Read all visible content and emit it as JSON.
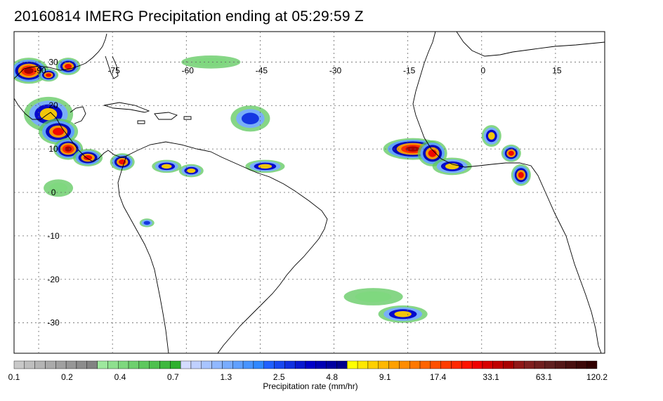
{
  "title": "20160814 IMERG Precipitation ending at 05:29:59 Z",
  "map": {
    "lon_labels": [
      "-90",
      "-75",
      "-60",
      "-45",
      "-30",
      "-15",
      "0",
      "15"
    ],
    "lat_labels": [
      "30",
      "20",
      "10",
      "0",
      "-10",
      "-20",
      "-30"
    ],
    "lon_range": [
      -95,
      25
    ],
    "lat_range": [
      -37,
      37
    ],
    "gridlines": true,
    "coastline_color": "#000000",
    "grid_color": "#555555"
  },
  "colorbar": {
    "label": "Precipitation rate (mm/hr)",
    "tick_labels": [
      "0.1",
      "0.2",
      "0.4",
      "0.7",
      "1.3",
      "2.5",
      "4.8",
      "9.1",
      "17.4",
      "33.1",
      "63.1",
      "120.2"
    ],
    "colors": [
      "#c8c8c8",
      "#bebebe",
      "#b4b4b4",
      "#aaaaaa",
      "#a0a0a0",
      "#969696",
      "#8c8c8c",
      "#828282",
      "#9ee89e",
      "#8ee08e",
      "#7ed87e",
      "#6ed06e",
      "#5ec85e",
      "#4ec04e",
      "#3eb83e",
      "#2eb02e",
      "#d4dcff",
      "#c0d0ff",
      "#a8c4ff",
      "#90b8ff",
      "#78acff",
      "#60a0ff",
      "#4894ff",
      "#3088ff",
      "#2060ff",
      "#1848f0",
      "#1030e0",
      "#0818d0",
      "#0000c8",
      "#0000b4",
      "#0000a0",
      "#00008c",
      "#ffff00",
      "#ffe800",
      "#ffd000",
      "#ffb800",
      "#ffa000",
      "#ff8c00",
      "#ff7800",
      "#ff6400",
      "#ff5000",
      "#ff3c00",
      "#ff2800",
      "#ff1400",
      "#f00000",
      "#d80000",
      "#c00000",
      "#a80000",
      "#901818",
      "#802020",
      "#702020",
      "#602020",
      "#541818",
      "#481010",
      "#3c0808",
      "#300000"
    ]
  },
  "precip_clusters": [
    {
      "lon": -92,
      "lat": 28,
      "rx": 4,
      "ry": 3,
      "level": 5
    },
    {
      "lon": -88,
      "lat": 27,
      "rx": 2,
      "ry": 1.5,
      "level": 4
    },
    {
      "lon": -84,
      "lat": 29,
      "rx": 2.5,
      "ry": 2,
      "level": 4
    },
    {
      "lon": -88,
      "lat": 18,
      "rx": 5,
      "ry": 4,
      "level": 3
    },
    {
      "lon": -86,
      "lat": 14,
      "rx": 4,
      "ry": 3,
      "level": 4
    },
    {
      "lon": -84,
      "lat": 10,
      "rx": 3,
      "ry": 2.5,
      "level": 5
    },
    {
      "lon": -80,
      "lat": 8,
      "rx": 3,
      "ry": 2,
      "level": 4
    },
    {
      "lon": -73,
      "lat": 7,
      "rx": 2.5,
      "ry": 2,
      "level": 4
    },
    {
      "lon": -64,
      "lat": 6,
      "rx": 3,
      "ry": 1.5,
      "level": 3
    },
    {
      "lon": -59,
      "lat": 5,
      "rx": 2.5,
      "ry": 1.5,
      "level": 3
    },
    {
      "lon": -44,
      "lat": 6,
      "rx": 4,
      "ry": 1.5,
      "level": 3
    },
    {
      "lon": -14,
      "lat": 10,
      "rx": 6,
      "ry": 2.5,
      "level": 5
    },
    {
      "lon": -10,
      "lat": 9,
      "rx": 3,
      "ry": 3,
      "level": 4
    },
    {
      "lon": -6,
      "lat": 6,
      "rx": 4,
      "ry": 2,
      "level": 3
    },
    {
      "lon": 2,
      "lat": 13,
      "rx": 2,
      "ry": 2.5,
      "level": 3
    },
    {
      "lon": 6,
      "lat": 9,
      "rx": 2,
      "ry": 2,
      "level": 4
    },
    {
      "lon": 8,
      "lat": 4,
      "rx": 2,
      "ry": 2.5,
      "level": 4
    },
    {
      "lon": -47,
      "lat": 17,
      "rx": 4,
      "ry": 3,
      "level": 2
    },
    {
      "lon": -16,
      "lat": -28,
      "rx": 5,
      "ry": 2,
      "level": 3
    },
    {
      "lon": -22,
      "lat": -24,
      "rx": 6,
      "ry": 2,
      "level": 1
    },
    {
      "lon": -86,
      "lat": 1,
      "rx": 3,
      "ry": 2,
      "level": 1
    },
    {
      "lon": -68,
      "lat": -7,
      "rx": 1.5,
      "ry": 1,
      "level": 2
    },
    {
      "lon": -55,
      "lat": 30,
      "rx": 6,
      "ry": 1.5,
      "level": 1
    }
  ]
}
